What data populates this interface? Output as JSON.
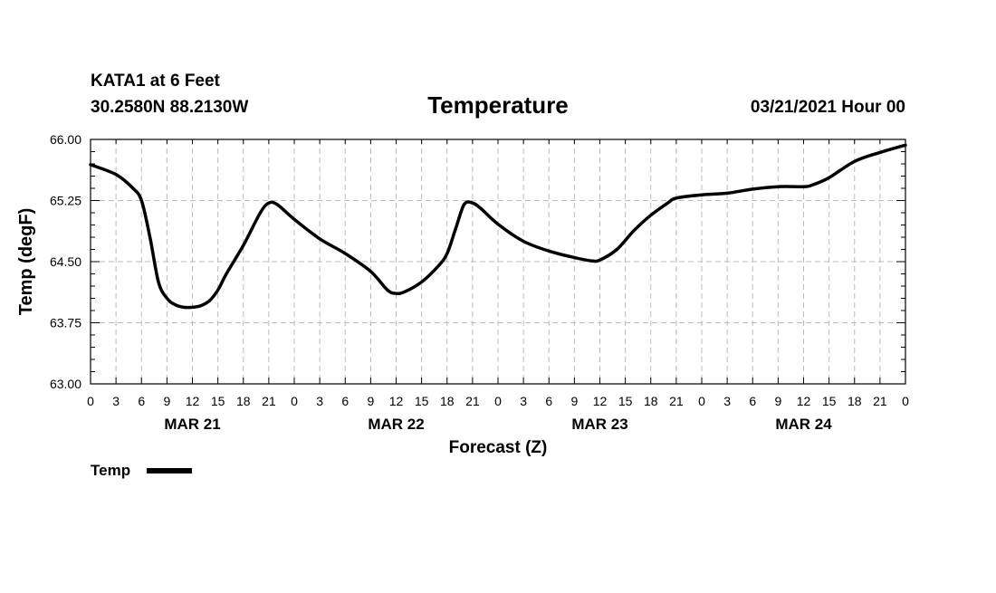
{
  "header": {
    "station": "KATA1 at 6 Feet",
    "coords": "30.2580N 88.2130W",
    "title": "Temperature",
    "timestamp": "03/21/2021 Hour 00"
  },
  "legend": {
    "label": "Temp",
    "placement": "bottom-left"
  },
  "colors": {
    "line": "#000000",
    "grid": "#bbbbbb",
    "background": "#ffffff"
  },
  "chart_data": {
    "type": "line",
    "title": "Temperature",
    "xlabel": "Forecast (Z)",
    "ylabel": "Temp (degF)",
    "ylim": [
      63.0,
      66.0
    ],
    "yticks": [
      "63.00",
      "63.75",
      "64.50",
      "65.25",
      "66.00"
    ],
    "xlim_hours": [
      0,
      96
    ],
    "x_tick_labels": [
      "0",
      "3",
      "6",
      "9",
      "12",
      "15",
      "18",
      "21",
      "0",
      "3",
      "6",
      "9",
      "12",
      "15",
      "18",
      "21",
      "0",
      "3",
      "6",
      "9",
      "12",
      "15",
      "18",
      "21",
      "0",
      "3",
      "6",
      "9",
      "12",
      "15",
      "18",
      "21",
      "0"
    ],
    "date_labels": [
      {
        "label": "MAR 21",
        "hour": 12
      },
      {
        "label": "MAR 22",
        "hour": 36
      },
      {
        "label": "MAR 23",
        "hour": 60
      },
      {
        "label": "MAR 24",
        "hour": 84
      }
    ],
    "grid": true,
    "series": [
      {
        "name": "Temp",
        "x": [
          "2021-03-21 00Z",
          "2021-03-21 03Z",
          "2021-03-21 05Z",
          "2021-03-21 06Z",
          "2021-03-21 07Z",
          "2021-03-21 08Z",
          "2021-03-21 09Z",
          "2021-03-21 10Z",
          "2021-03-21 11Z",
          "2021-03-21 12Z",
          "2021-03-21 13Z",
          "2021-03-21 14Z",
          "2021-03-21 15Z",
          "2021-03-21 16Z",
          "2021-03-21 18Z",
          "2021-03-21 20Z",
          "2021-03-21 21Z",
          "2021-03-21 22Z",
          "2021-03-22 00Z",
          "2021-03-22 03Z",
          "2021-03-22 06Z",
          "2021-03-22 09Z",
          "2021-03-22 11Z",
          "2021-03-22 12Z",
          "2021-03-22 13Z",
          "2021-03-22 15Z",
          "2021-03-22 17Z",
          "2021-03-22 18Z",
          "2021-03-22 19Z",
          "2021-03-22 20Z",
          "2021-03-22 21Z",
          "2021-03-22 22Z",
          "2021-03-23 00Z",
          "2021-03-23 03Z",
          "2021-03-23 06Z",
          "2021-03-23 09Z",
          "2021-03-23 11Z",
          "2021-03-23 12Z",
          "2021-03-23 14Z",
          "2021-03-23 16Z",
          "2021-03-23 18Z",
          "2021-03-23 20Z",
          "2021-03-23 21Z",
          "2021-03-24 00Z",
          "2021-03-24 03Z",
          "2021-03-24 06Z",
          "2021-03-24 09Z",
          "2021-03-24 12Z",
          "2021-03-24 13Z",
          "2021-03-24 15Z",
          "2021-03-24 18Z",
          "2021-03-24 21Z",
          "2021-03-25 00Z"
        ],
        "hours": [
          0,
          3,
          5,
          6,
          7,
          8,
          9,
          10,
          11,
          12,
          13,
          14,
          15,
          16,
          18,
          20,
          21,
          22,
          24,
          27,
          30,
          33,
          35,
          36,
          37,
          39,
          41,
          42,
          43,
          44,
          45,
          46,
          48,
          51,
          54,
          57,
          59,
          60,
          62,
          64,
          66,
          68,
          69,
          72,
          75,
          78,
          81,
          84,
          85,
          87,
          90,
          93,
          96
        ],
        "values": [
          65.69,
          65.57,
          65.4,
          65.25,
          64.8,
          64.25,
          64.05,
          63.97,
          63.94,
          63.94,
          63.96,
          64.02,
          64.15,
          64.35,
          64.7,
          65.1,
          65.22,
          65.2,
          65.02,
          64.78,
          64.6,
          64.38,
          64.15,
          64.11,
          64.13,
          64.25,
          64.45,
          64.6,
          64.9,
          65.2,
          65.22,
          65.15,
          64.96,
          64.75,
          64.63,
          64.55,
          64.51,
          64.52,
          64.65,
          64.88,
          65.07,
          65.22,
          65.28,
          65.32,
          65.34,
          65.39,
          65.42,
          65.42,
          65.44,
          65.53,
          65.73,
          65.84,
          65.93
        ]
      }
    ]
  }
}
